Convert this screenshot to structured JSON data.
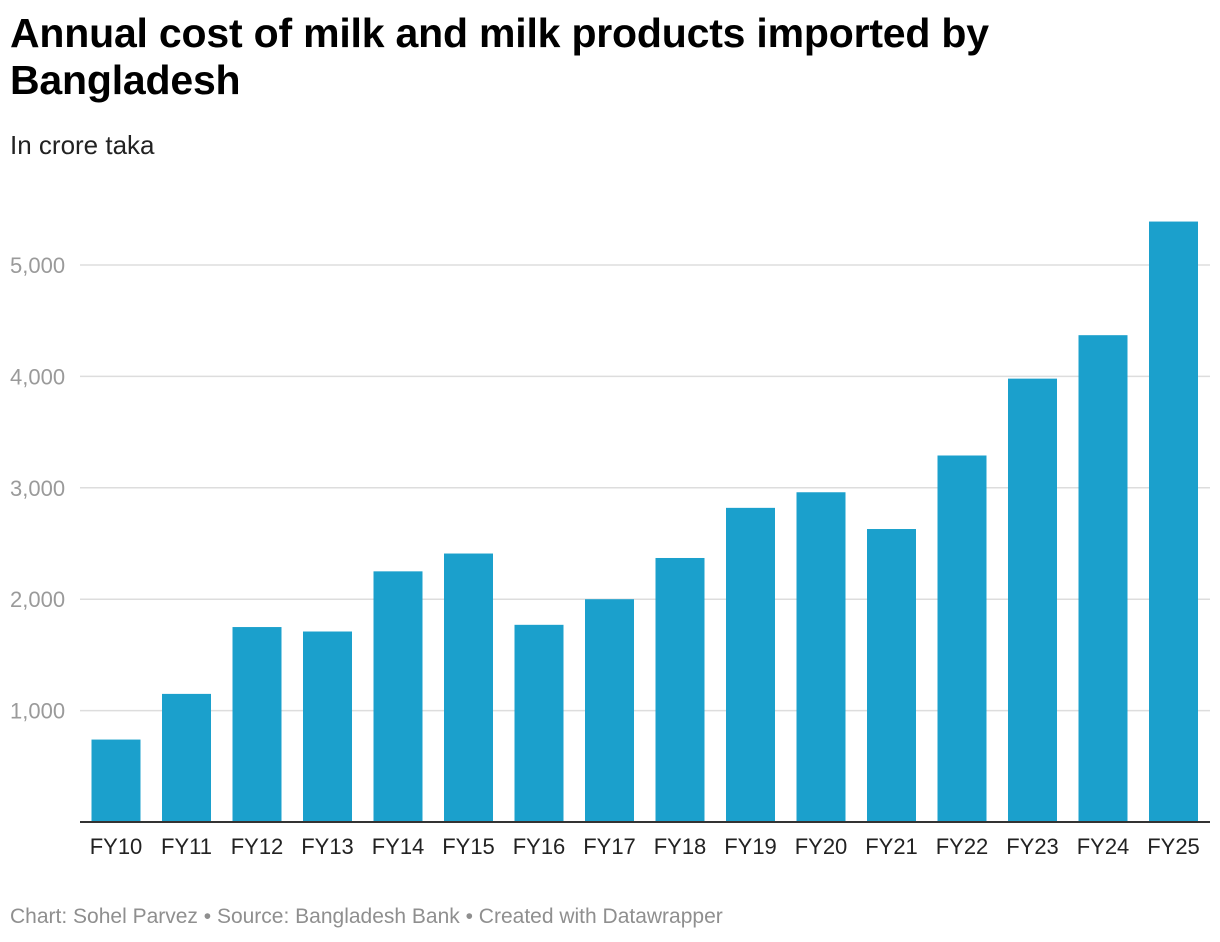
{
  "header": {
    "title": "Annual cost of milk and milk products imported by Bangladesh",
    "subtitle": "In crore taka"
  },
  "footer": {
    "credit": "Chart: Sohel Parvez • Source: Bangladesh Bank • Created with Datawrapper"
  },
  "colors": {
    "bar": "#1ba0cc",
    "grid": "#dddddd",
    "axis": "#333333"
  },
  "chart_data": {
    "type": "bar",
    "title": "Annual cost of milk and milk products imported by Bangladesh",
    "subtitle": "In crore taka",
    "categories": [
      "FY10",
      "FY11",
      "FY12",
      "FY13",
      "FY14",
      "FY15",
      "FY16",
      "FY17",
      "FY18",
      "FY19",
      "FY20",
      "FY21",
      "FY22",
      "FY23",
      "FY24",
      "FY25"
    ],
    "values": [
      740,
      1150,
      1750,
      1710,
      2250,
      2410,
      1770,
      2000,
      2370,
      2820,
      2960,
      2630,
      3290,
      3980,
      4370,
      5390
    ],
    "yticks": [
      "1,000",
      "2,000",
      "3,000",
      "4,000",
      "5,000"
    ],
    "ytick_values": [
      1000,
      2000,
      3000,
      4000,
      5000
    ],
    "ylim": [
      0,
      5500
    ],
    "grid": true,
    "legend": "none"
  }
}
